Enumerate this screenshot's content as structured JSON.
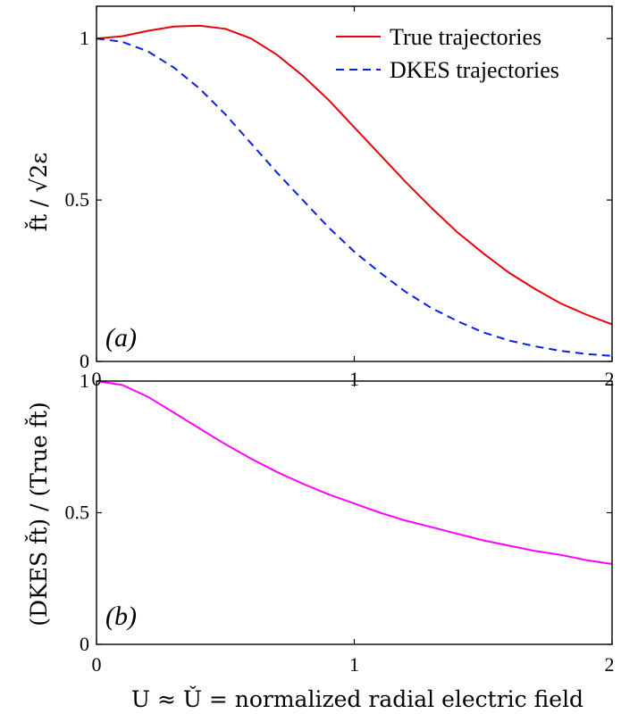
{
  "chart_data": [
    {
      "type": "line",
      "panel_label": "(a)",
      "ylabel": "f̌t / √2ε",
      "xlabel": "",
      "xlim": [
        0,
        2
      ],
      "ylim": [
        0,
        1.1
      ],
      "xticks": [
        "0",
        "1",
        "2"
      ],
      "yticks": [
        "0",
        "0.5",
        "1"
      ],
      "legend_position": "top-right",
      "series": [
        {
          "name": "True trajectories",
          "color": "#e8000b",
          "style": "solid",
          "x": [
            0,
            0.1,
            0.2,
            0.3,
            0.4,
            0.5,
            0.6,
            0.7,
            0.8,
            0.9,
            1.0,
            1.1,
            1.2,
            1.3,
            1.4,
            1.5,
            1.6,
            1.7,
            1.8,
            1.9,
            2.0
          ],
          "y": [
            1.0,
            1.007,
            1.024,
            1.037,
            1.04,
            1.03,
            1.0,
            0.95,
            0.885,
            0.81,
            0.725,
            0.64,
            0.555,
            0.475,
            0.4,
            0.335,
            0.275,
            0.225,
            0.18,
            0.145,
            0.115
          ]
        },
        {
          "name": "DKES trajectories",
          "color": "#0a1fe8",
          "style": "dashed",
          "x": [
            0,
            0.1,
            0.2,
            0.3,
            0.4,
            0.5,
            0.6,
            0.7,
            0.8,
            0.9,
            1.0,
            1.1,
            1.2,
            1.3,
            1.4,
            1.5,
            1.6,
            1.7,
            1.8,
            1.9,
            2.0
          ],
          "y": [
            1.0,
            0.99,
            0.96,
            0.91,
            0.845,
            0.765,
            0.675,
            0.585,
            0.5,
            0.415,
            0.34,
            0.275,
            0.215,
            0.165,
            0.125,
            0.09,
            0.065,
            0.047,
            0.033,
            0.023,
            0.017
          ]
        }
      ]
    },
    {
      "type": "line",
      "panel_label": "(b)",
      "ylabel": "(DKES f̌t) / (True f̌t)",
      "xlabel": "U ≈ Ǔ = normalized radial electric field",
      "xlim": [
        0,
        2
      ],
      "ylim": [
        0,
        1
      ],
      "xticks": [
        "0",
        "1",
        "2"
      ],
      "yticks": [
        "0",
        "0.5",
        "1"
      ],
      "series": [
        {
          "name": "",
          "color": "#ff00ff",
          "style": "solid",
          "x": [
            0,
            0.1,
            0.2,
            0.3,
            0.4,
            0.5,
            0.6,
            0.7,
            0.8,
            0.9,
            1.0,
            1.1,
            1.2,
            1.3,
            1.4,
            1.5,
            1.6,
            1.7,
            1.8,
            1.9,
            2.0
          ],
          "y": [
            1.0,
            0.985,
            0.94,
            0.88,
            0.82,
            0.76,
            0.705,
            0.655,
            0.61,
            0.57,
            0.535,
            0.5,
            0.47,
            0.445,
            0.42,
            0.395,
            0.375,
            0.355,
            0.34,
            0.32,
            0.305
          ]
        }
      ]
    }
  ]
}
